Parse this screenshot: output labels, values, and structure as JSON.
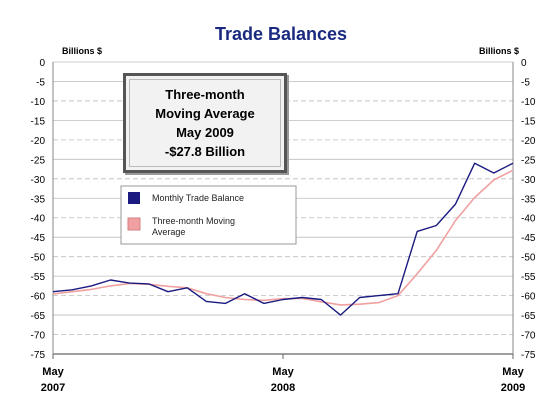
{
  "chart_data": {
    "type": "line",
    "title": "Trade Balances",
    "ylabel_left": "Billions $",
    "ylabel_right": "Billions $",
    "ylim": [
      -75,
      0
    ],
    "ytick_step": 5,
    "grid": "horizontal",
    "x": [
      "May 2007",
      "Jun 2007",
      "Jul 2007",
      "Aug 2007",
      "Sep 2007",
      "Oct 2007",
      "Nov 2007",
      "Dec 2007",
      "Jan 2008",
      "Feb 2008",
      "Mar 2008",
      "Apr 2008",
      "May 2008",
      "Jun 2008",
      "Jul 2008",
      "Aug 2008",
      "Sep 2008",
      "Oct 2008",
      "Nov 2008",
      "Dec 2008",
      "Jan 2009",
      "Feb 2009",
      "Mar 2009",
      "Apr 2009",
      "May 2009"
    ],
    "x_tick_labels": [
      {
        "index": 0,
        "line1": "May",
        "line2": "2007"
      },
      {
        "index": 12,
        "line1": "May",
        "line2": "2008"
      },
      {
        "index": 24,
        "line1": "May",
        "line2": "2009"
      }
    ],
    "series": [
      {
        "name": "Monthly Trade Balance",
        "color": "#1a1a80",
        "values": [
          -59.0,
          -58.5,
          -57.5,
          -56.0,
          -56.8,
          -57.0,
          -59.0,
          -58.0,
          -61.5,
          -62.0,
          -59.5,
          -62.0,
          -61.0,
          -60.5,
          -61.0,
          -65.0,
          -60.5,
          -60.0,
          -59.5,
          -43.5,
          -42.0,
          -36.5,
          -26.0,
          -28.5,
          -26.0
        ]
      },
      {
        "name": "Three-month Moving Average",
        "color": "#f0a0a0",
        "values": [
          -59.6,
          -59.0,
          -58.4,
          -57.5,
          -56.9,
          -57.1,
          -57.6,
          -58.0,
          -59.5,
          -60.5,
          -61.0,
          -61.2,
          -60.8,
          -60.7,
          -61.6,
          -62.4,
          -62.2,
          -61.8,
          -60.0,
          -54.4,
          -48.4,
          -40.7,
          -34.8,
          -30.3,
          -27.8
        ]
      }
    ],
    "legend_placement": "upper-left, inside plot"
  },
  "annotation": {
    "line1": "Three-month",
    "line2": "Moving Average",
    "line3": "May 2009",
    "line4": "-$27.8 Billion"
  }
}
